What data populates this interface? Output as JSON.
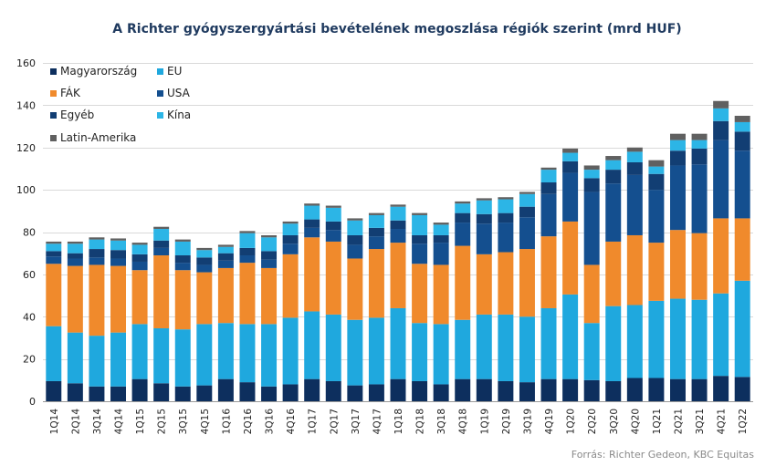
{
  "chart_data": {
    "type": "bar",
    "stacked": true,
    "title": "A Richter gyógyszergyártási bevételének megoszlása régiók szerint (mrd HUF)",
    "source": "Forrás: Richter Gedeon, KBC Equitas",
    "ylim": [
      0,
      160
    ],
    "yticks": [
      0,
      20,
      40,
      60,
      80,
      100,
      120,
      140,
      160
    ],
    "grid": true,
    "legend_position": "top-left",
    "categories": [
      "1Q14",
      "2Q14",
      "3Q14",
      "4Q14",
      "1Q15",
      "2Q15",
      "3Q15",
      "4Q15",
      "1Q16",
      "2Q16",
      "3Q16",
      "4Q16",
      "1Q17",
      "2Q17",
      "3Q17",
      "4Q17",
      "1Q18",
      "2Q18",
      "3Q18",
      "4Q18",
      "1Q19",
      "2Q19",
      "3Q19",
      "4Q19",
      "1Q20",
      "2Q20",
      "3Q20",
      "4Q20",
      "1Q21",
      "2Q21",
      "3Q21",
      "4Q21",
      "1Q22"
    ],
    "series": [
      {
        "name": "Magyarország",
        "color": "#0d2f5e",
        "values": [
          9.5,
          8.5,
          7,
          7,
          10.5,
          8.5,
          7,
          7.5,
          10.5,
          9,
          7,
          8,
          10.5,
          9.5,
          7.5,
          8,
          10.5,
          9.5,
          8,
          10.5,
          10.5,
          9.5,
          9,
          10.5,
          10.5,
          10,
          9.5,
          11,
          11,
          10.5,
          10.5,
          12,
          11.5
        ]
      },
      {
        "name": "EU",
        "color": "#1fa8de",
        "values": [
          26,
          24,
          24,
          25.5,
          26,
          26,
          27,
          29,
          26.5,
          27.5,
          29.5,
          31.5,
          32,
          31.5,
          31,
          31.5,
          33.5,
          27.5,
          28.5,
          28,
          30.5,
          31.5,
          31,
          33.5,
          40,
          27,
          35.5,
          34.5,
          36.5,
          38,
          37.5,
          39,
          45.5
        ]
      },
      {
        "name": "FÁK",
        "color": "#f08a2c",
        "values": [
          29.5,
          31.5,
          33.5,
          31.5,
          25.5,
          34.5,
          28,
          24.5,
          26,
          29,
          26.5,
          30,
          35,
          34.5,
          29,
          32.5,
          31,
          28,
          28,
          35,
          28.5,
          29.5,
          32,
          34,
          34.5,
          27.5,
          30.5,
          33,
          27.5,
          32.5,
          31.5,
          35.5,
          29.5
        ]
      },
      {
        "name": "USA",
        "color": "#144f8f",
        "values": [
          3.5,
          3.5,
          3.5,
          3.5,
          4,
          3.5,
          3.5,
          3.5,
          3.5,
          3.5,
          4,
          5,
          4.5,
          5.5,
          6.5,
          6,
          6.5,
          9.5,
          10.5,
          11,
          14.5,
          14,
          15,
          20,
          23,
          34.5,
          27.5,
          28.5,
          25,
          30.5,
          32.5,
          37,
          32
        ]
      },
      {
        "name": "Egyéb",
        "color": "#123e73",
        "values": [
          2.5,
          2.5,
          4,
          4,
          3.5,
          3.5,
          3.5,
          3.5,
          3.5,
          3.5,
          4,
          4,
          4,
          4,
          4.5,
          4,
          4,
          4,
          3.5,
          4.5,
          4.5,
          4.5,
          5,
          5.5,
          5.5,
          6.5,
          6.5,
          6,
          7.5,
          7,
          7.5,
          9,
          9
        ]
      },
      {
        "name": "Kína",
        "color": "#2cb5e6",
        "values": [
          3.5,
          4.5,
          4.5,
          4.5,
          4.5,
          5.5,
          6.5,
          3.5,
          3,
          7,
          6.5,
          5.5,
          6.5,
          6.5,
          7,
          6,
          6.5,
          9.5,
          5,
          4.5,
          6.5,
          6.5,
          6,
          6,
          4,
          4,
          4.5,
          5,
          3.5,
          5,
          4,
          6,
          4.5
        ]
      },
      {
        "name": "Latin-Amerika",
        "color": "#606060",
        "values": [
          1,
          1,
          1,
          1,
          1,
          1,
          1,
          1,
          1,
          1,
          1,
          1,
          1,
          1,
          1,
          1,
          1,
          1,
          1,
          1,
          1,
          1,
          1,
          1,
          2,
          2,
          2,
          2,
          3,
          3,
          3,
          3.5,
          3
        ]
      }
    ]
  }
}
